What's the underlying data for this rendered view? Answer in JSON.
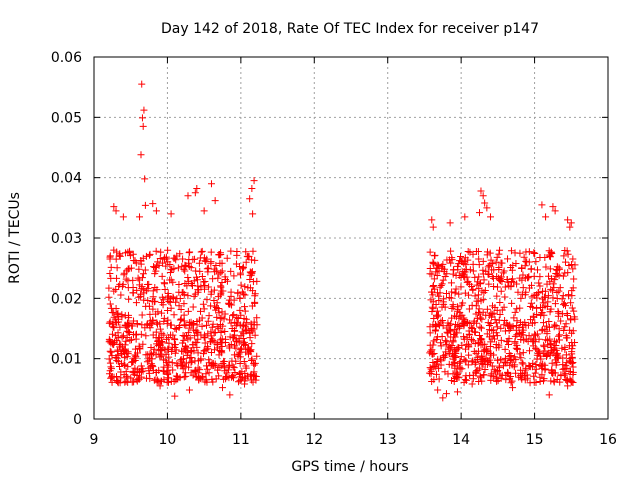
{
  "chart_data": {
    "type": "scatter",
    "title": "Day 142 of 2018, Rate Of TEC Index for receiver p147",
    "xlabel": "GPS time / hours",
    "ylabel": "ROTI / TECUs",
    "xlim": [
      9,
      16
    ],
    "ylim": [
      0,
      0.06
    ],
    "x_ticks": [
      "9",
      "10",
      "11",
      "12",
      "13",
      "14",
      "15",
      "16"
    ],
    "y_ticks": [
      "0",
      "0.01",
      "0.02",
      "0.03",
      "0.04",
      "0.05",
      "0.06"
    ],
    "grid": true,
    "marker": "+",
    "color": "#ff0000",
    "series": [
      {
        "name": "ROTI",
        "points": [
          [
            9.65,
            0.0555
          ],
          [
            9.68,
            0.0512
          ],
          [
            9.66,
            0.0499
          ],
          [
            9.67,
            0.0485
          ],
          [
            9.64,
            0.0438
          ],
          [
            9.69,
            0.0398
          ],
          [
            9.8,
            0.0357
          ],
          [
            9.7,
            0.0354
          ],
          [
            9.62,
            0.0335
          ],
          [
            9.85,
            0.0345
          ],
          [
            9.27,
            0.0352
          ],
          [
            9.3,
            0.0345
          ],
          [
            9.4,
            0.0335
          ],
          [
            10.4,
            0.0382
          ],
          [
            10.38,
            0.0375
          ],
          [
            10.6,
            0.039
          ],
          [
            10.65,
            0.0362
          ],
          [
            10.28,
            0.037
          ],
          [
            11.18,
            0.0395
          ],
          [
            11.15,
            0.0382
          ],
          [
            11.12,
            0.0365
          ],
          [
            11.16,
            0.034
          ],
          [
            10.5,
            0.0345
          ],
          [
            10.05,
            0.034
          ],
          [
            14.27,
            0.0378
          ],
          [
            14.3,
            0.037
          ],
          [
            14.32,
            0.0358
          ],
          [
            14.25,
            0.0342
          ],
          [
            14.35,
            0.035
          ],
          [
            14.4,
            0.0335
          ],
          [
            15.1,
            0.0355
          ],
          [
            15.25,
            0.0352
          ],
          [
            15.28,
            0.0345
          ],
          [
            15.15,
            0.0335
          ],
          [
            13.6,
            0.033
          ],
          [
            13.62,
            0.0318
          ],
          [
            13.85,
            0.0325
          ],
          [
            14.05,
            0.0335
          ],
          [
            15.45,
            0.033
          ],
          [
            15.5,
            0.0325
          ],
          [
            15.48,
            0.0318
          ],
          [
            9.5,
            0.0068
          ],
          [
            9.9,
            0.0055
          ],
          [
            10.1,
            0.0038
          ],
          [
            10.75,
            0.0052
          ],
          [
            10.85,
            0.004
          ],
          [
            11.05,
            0.0058
          ],
          [
            13.68,
            0.0048
          ],
          [
            13.75,
            0.0035
          ],
          [
            13.8,
            0.0042
          ],
          [
            13.95,
            0.0045
          ],
          [
            14.7,
            0.0052
          ],
          [
            15.2,
            0.004
          ],
          [
            15.45,
            0.0055
          ],
          [
            15.5,
            0.0062
          ],
          [
            9.22,
            0.008
          ],
          [
            9.25,
            0.007
          ],
          [
            10.3,
            0.0048
          ],
          [
            14.15,
            0.0058
          ]
        ]
      }
    ]
  }
}
